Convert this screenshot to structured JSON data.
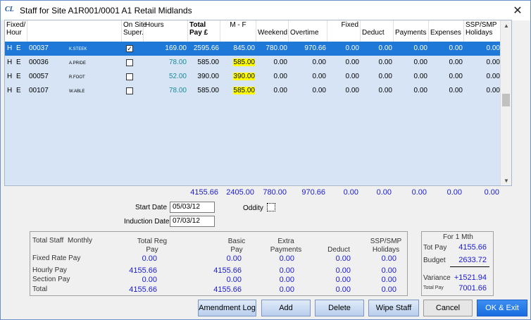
{
  "window": {
    "title": "Staff for Site A1R001/0001 A1 Retail Midlands",
    "app_icon": "CL",
    "close_icon": "close-icon"
  },
  "grid": {
    "headers": {
      "fixed_hour": "Fixed/\nHour",
      "on_site_super": "On Site\nSuper.",
      "hours": "Hours",
      "total_pay": "Total\nPay £",
      "mf": "M - F",
      "weekend": "Weekend",
      "overtime": "Overtime",
      "fixed": "Fixed",
      "deduct": "Deduct",
      "payments": "Payments",
      "expenses": "Expenses",
      "ssp_smp": "SSP/SMP\nHolidays"
    },
    "rows": [
      {
        "type": "H",
        "flag": "E",
        "code": "00037",
        "name": "K.STEEK",
        "super": true,
        "hours": "169.00",
        "total": "2595.66",
        "mf": "845.00",
        "weekend": "780.00",
        "overtime": "970.66",
        "fixed": "0.00",
        "deduct": "0.00",
        "payments": "0.00",
        "expenses": "0.00",
        "ssp": "0.00",
        "selected": true
      },
      {
        "type": "H",
        "flag": "E",
        "code": "00036",
        "name": "A.PRIDE",
        "super": false,
        "hours": "78.00",
        "total": "585.00",
        "mf": "585.00",
        "weekend": "0.00",
        "overtime": "0.00",
        "fixed": "0.00",
        "deduct": "0.00",
        "payments": "0.00",
        "expenses": "0.00",
        "ssp": "0.00",
        "selected": false
      },
      {
        "type": "H",
        "flag": "E",
        "code": "00057",
        "name": "R.FOOT",
        "super": false,
        "hours": "52.00",
        "total": "390.00",
        "mf": "390.00",
        "weekend": "0.00",
        "overtime": "0.00",
        "fixed": "0.00",
        "deduct": "0.00",
        "payments": "0.00",
        "expenses": "0.00",
        "ssp": "0.00",
        "selected": false
      },
      {
        "type": "H",
        "flag": "E",
        "code": "00107",
        "name": "W.ABLE",
        "super": false,
        "hours": "78.00",
        "total": "585.00",
        "mf": "585.00",
        "weekend": "0.00",
        "overtime": "0.00",
        "fixed": "0.00",
        "deduct": "0.00",
        "payments": "0.00",
        "expenses": "0.00",
        "ssp": "0.00",
        "selected": false
      }
    ],
    "checkmark": "✓",
    "scroll_up": "▲",
    "scroll_down": "▼"
  },
  "totals": {
    "total_pay": "4155.66",
    "mf": "2405.00",
    "weekend": "780.00",
    "overtime": "970.66",
    "fixed": "0.00",
    "deduct": "0.00",
    "payments": "0.00",
    "expenses": "0.00",
    "ssp": "0.00"
  },
  "fields": {
    "start_date_label": "Start Date",
    "start_date": "05/03/12",
    "induction_date_label": "Induction Date",
    "induction_date": "07/03/12",
    "oddity_label": "Oddity"
  },
  "summary": {
    "total_staff": "Total Staff",
    "monthly": "Monthly",
    "col_total_reg_pay": "Total Reg\nPay",
    "col_basic_pay": "Basic\nPay",
    "col_extra_payments": "Extra\nPayments",
    "col_deduct": "Deduct",
    "col_ssp_smp": "SSP/SMP\nHolidays",
    "rows": [
      {
        "label": "Fixed Rate Pay",
        "values": [
          "0.00",
          "0.00",
          "0.00",
          "0.00",
          "0.00"
        ]
      },
      {
        "label": "Hourly Pay",
        "values": [
          "4155.66",
          "4155.66",
          "0.00",
          "0.00",
          "0.00"
        ]
      },
      {
        "label": "Section Pay",
        "values": [
          "0.00",
          "0.00",
          "0.00",
          "0.00",
          "0.00"
        ]
      },
      {
        "label": "Total",
        "values": [
          "4155.66",
          "4155.66",
          "0.00",
          "0.00",
          "0.00"
        ]
      }
    ]
  },
  "side": {
    "for_1mth": "For  1 Mth",
    "tot_pay_label": "Tot Pay",
    "tot_pay": "4155.66",
    "budget_label": "Budget",
    "budget": "2633.72",
    "variance_label": "Variance",
    "variance": "+1521.94",
    "total_pay_label": "Total Pay",
    "total_pay": "7001.66"
  },
  "buttons": {
    "amendment_log": "Amendment Log",
    "add": "Add",
    "delete": "Delete",
    "wipe_staff": "Wipe Staff",
    "cancel": "Cancel",
    "ok_exit": "OK & Exit"
  },
  "colors": {
    "selected_row": "#1e78d7",
    "grid_bg": "#d6e4f5",
    "highlight": "#ffff00",
    "blue_text": "#1a1ad0",
    "ok_button": "#1a6de0"
  }
}
